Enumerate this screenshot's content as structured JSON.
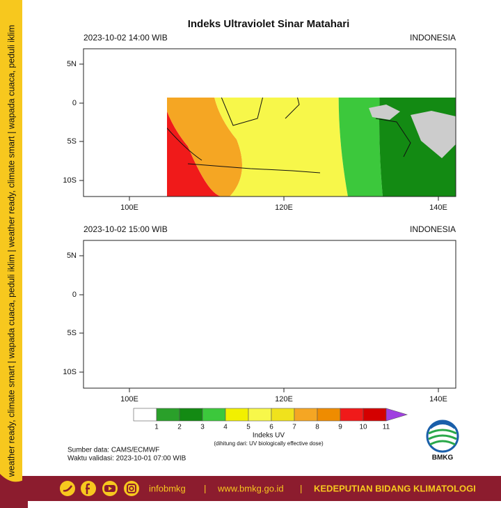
{
  "sidebar": {
    "text": "weather ready, climate smart | wapada cuaca, peduli iklim | weather ready, climate smart | wapada cuaca, peduli iklim"
  },
  "title": "Indeks Ultraviolet Sinar Matahari",
  "maps": [
    {
      "time": "2023-10-02  14:00 WIB",
      "region": "INDONESIA",
      "lat_labels": [
        "5N",
        "0",
        "5S",
        "10S"
      ],
      "lon_labels": [
        "100E",
        "120E",
        "140E"
      ]
    },
    {
      "time": "2023-10-02  15:00 WIB",
      "region": "INDONESIA",
      "lat_labels": [
        "5N",
        "0",
        "5S",
        "10S"
      ],
      "lon_labels": [
        "100E",
        "120E",
        "140E"
      ]
    }
  ],
  "colorbar": {
    "labels": [
      1,
      2,
      3,
      4,
      5,
      6,
      7,
      8,
      9,
      10,
      11
    ],
    "colors": [
      "#ffffff",
      "#2aa02a",
      "#138a13",
      "#3cc83c",
      "#f2f000",
      "#f7f74a",
      "#f0e21c",
      "#f5a623",
      "#ef8c00",
      "#f01a1a",
      "#d40000"
    ],
    "over_color": "#a040e0",
    "title": "Indeks UV",
    "note": "(dihitung dari: UV biologically effective dose)"
  },
  "source": "Sumber data: CAMS/ECMWF",
  "validity": "Waktu validasi: 2023-10-01 07:00 WIB",
  "logo": "BMKG",
  "footer": {
    "handle": "infobmkg",
    "separator": "|",
    "website": "www.bmkg.go.id",
    "department": "KEDEPUTIAN BIDANG KLIMATOLOGI"
  }
}
